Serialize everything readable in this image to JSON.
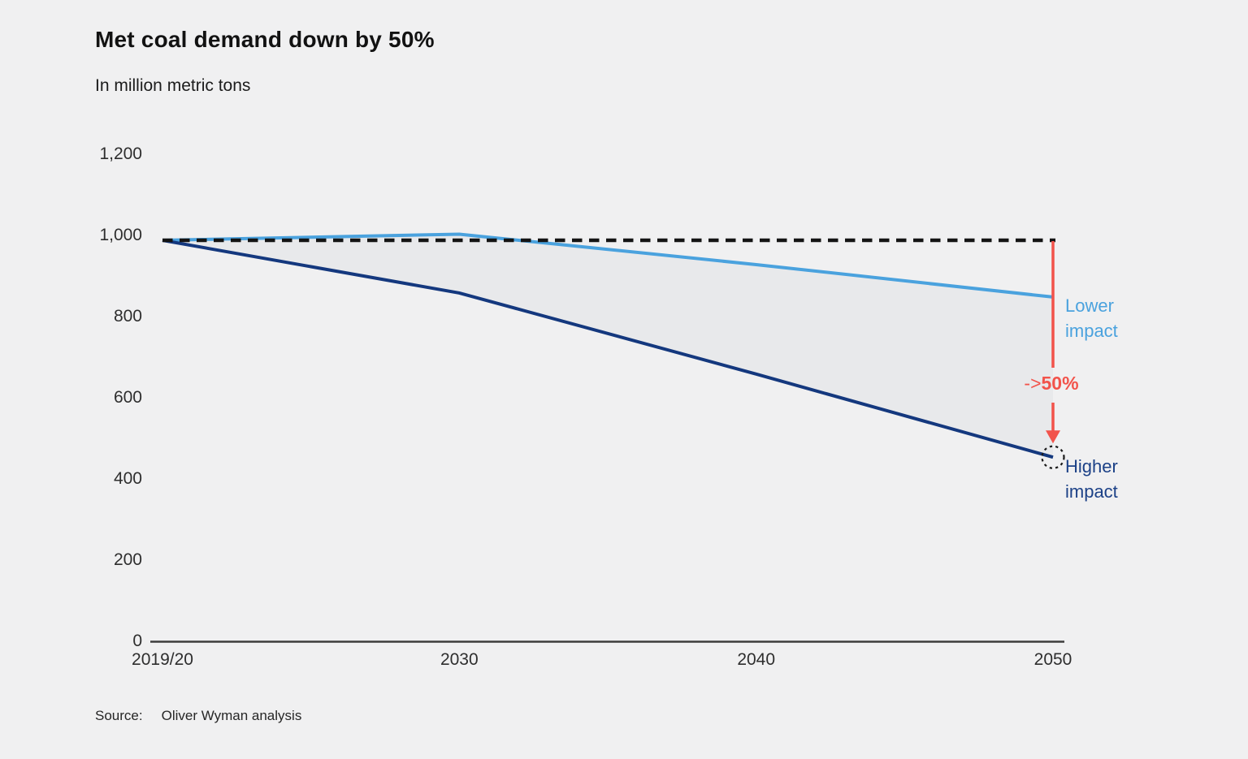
{
  "header": {
    "title": "Met coal demand down by 50%",
    "subtitle": "In million metric tons"
  },
  "chart_data": {
    "type": "line",
    "title": "Met coal demand down by 50%",
    "ylabel": "In million metric tons",
    "xlabel": "",
    "ylim": [
      0,
      1200
    ],
    "grid": false,
    "legend_position": "inline-right-of-line-ends",
    "categories": [
      "2019/20",
      "2030",
      "2040",
      "2050"
    ],
    "series": [
      {
        "name": "Lower impact",
        "color": "#4aa2de",
        "values": [
          990,
          1005,
          930,
          850
        ]
      },
      {
        "name": "Higher impact",
        "color": "#14387e",
        "values": [
          990,
          860,
          660,
          455
        ]
      }
    ],
    "band_between_series_fill": "#e8e9eb",
    "baseline": {
      "value": 990,
      "style": "dashed",
      "color": "#141414"
    },
    "y_ticks": [
      {
        "value": 1200,
        "label": "1,200"
      },
      {
        "value": 1000,
        "label": "1,000"
      },
      {
        "value": 800,
        "label": "800"
      },
      {
        "value": 600,
        "label": "600"
      },
      {
        "value": 400,
        "label": "400"
      },
      {
        "value": 200,
        "label": "200"
      },
      {
        "value": 0,
        "label": "0"
      }
    ]
  },
  "annotations": {
    "lower_label": "Lower impact",
    "higher_label": "Higher impact",
    "arrow_prefix": "->",
    "arrow_value": "50%",
    "arrow_color": "#f2534b",
    "endpoint_marker": "dotted-circle"
  },
  "footer": {
    "source_label": "Source:",
    "source_text": "Oliver Wyman analysis"
  },
  "colors": {
    "background": "#f0f0f1",
    "lower_impact": "#4aa2de",
    "higher_impact": "#14387e",
    "decline_arrow": "#f2534b",
    "baseline_dash": "#141414",
    "band_fill": "#e8e9eb"
  }
}
